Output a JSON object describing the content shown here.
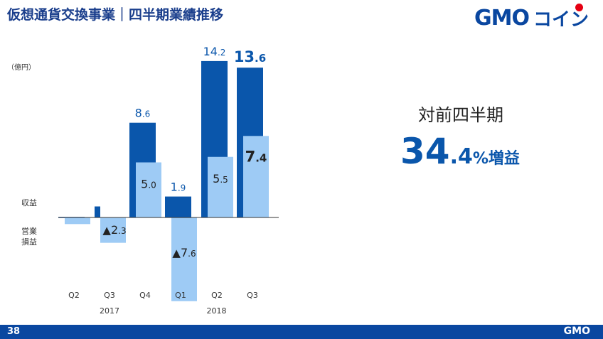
{
  "header": {
    "title": "仮想通貨交換事業｜四半期業績推移",
    "logo_text": "GMO",
    "logo_coin": "コイン"
  },
  "unit": "（億円）",
  "labels": {
    "revenue": "収益",
    "op_income_line1": "営業",
    "op_income_line2": "損益"
  },
  "kpi": {
    "label": "対前四半期",
    "value_int": "34",
    "value_dec": ".4",
    "value_suffix": "%増益"
  },
  "footer": {
    "page_number": "38",
    "logo": "GMO"
  },
  "colors": {
    "revenue": "#0a56ab",
    "op_income": "#9ecbf5",
    "title": "#1a3e8c"
  },
  "chart_data": {
    "type": "bar",
    "categories": [
      "Q2",
      "Q3",
      "Q4",
      "Q1",
      "Q2",
      "Q3"
    ],
    "years": [
      {
        "label": "2017",
        "start": 0,
        "end": 2
      },
      {
        "label": "2018",
        "start": 3,
        "end": 5
      }
    ],
    "series": [
      {
        "key": "revenue",
        "values": [
          0.05,
          1.0,
          8.6,
          1.9,
          14.2,
          13.6
        ],
        "labels": [
          "",
          "",
          "8.6",
          "1.9",
          "14.2",
          "13.6"
        ]
      },
      {
        "key": "op_income",
        "values": [
          -0.6,
          -2.3,
          5.0,
          -7.6,
          5.5,
          7.4
        ],
        "labels": [
          "",
          "▲2.3",
          "5.0",
          "▲7.6",
          "5.5",
          "7.4"
        ]
      }
    ],
    "ylim": [
      -8,
      14.5
    ]
  }
}
